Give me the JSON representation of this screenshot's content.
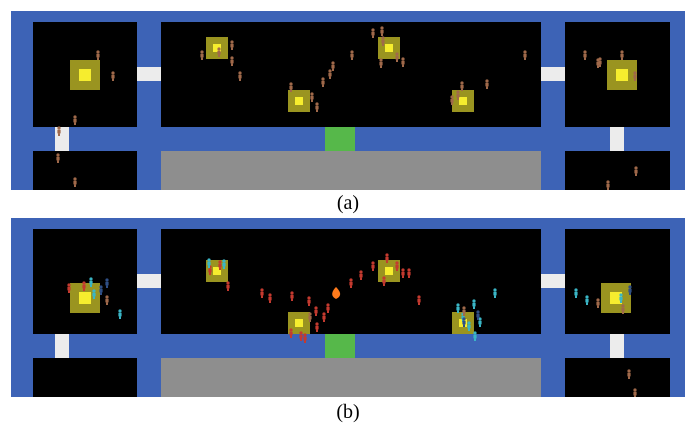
{
  "figure": {
    "panels": [
      {
        "id": "a",
        "caption": "(a)"
      },
      {
        "id": "b",
        "caption": "(b)"
      }
    ]
  },
  "colors": {
    "wall": "#3d63b6",
    "room": "#000000",
    "door": "#ececec",
    "exit": "#56b84a",
    "floor_region": "#8e8e8e",
    "target_outer": "#9a9420",
    "target_inner": "#f6ed2e",
    "agent_brown": "#a0694a",
    "agent_red": "#c43a2f",
    "agent_cyan": "#3ab6c6",
    "agent_navy": "#2f4f86",
    "hazard_orange": "#ff7b1c"
  },
  "icons": {
    "agent": "person-icon",
    "hazard": "fire-icon",
    "target": "target-square-icon"
  }
}
